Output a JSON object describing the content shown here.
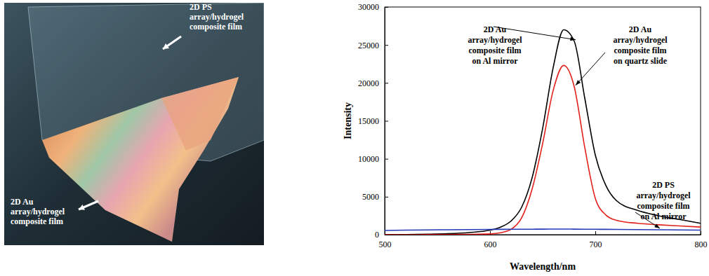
{
  "photo": {
    "labels": [
      {
        "text": "2D PS\narray/hydrogel\ncomposite film"
      },
      {
        "text": "2D Au\narray/hydrogel\ncomposite film"
      }
    ]
  },
  "chart_data": {
    "type": "line",
    "x_label": "Wavelength/nm",
    "y_label": "Intensity",
    "x": [
      500,
      520,
      540,
      560,
      580,
      600,
      610,
      620,
      630,
      640,
      650,
      660,
      670,
      680,
      690,
      700,
      710,
      720,
      740,
      760,
      780,
      800
    ],
    "series": [
      {
        "name": "2D Au\narray/hydrogel\ncomposite film\non Al mirror",
        "color": "#000000",
        "values": [
          0,
          20,
          60,
          130,
          280,
          600,
          1000,
          1800,
          3600,
          7500,
          14000,
          22000,
          27000,
          25500,
          18000,
          10500,
          6500,
          4500,
          3200,
          2500,
          2000,
          1500
        ]
      },
      {
        "name": "2D Au\narray/hydrogel\ncomposite film\non quartz slide",
        "color": "#e3211c",
        "values": [
          0,
          0,
          10,
          20,
          40,
          100,
          250,
          700,
          2200,
          6000,
          12000,
          19000,
          22300,
          19500,
          11500,
          4800,
          2600,
          1900,
          1500,
          1300,
          1150,
          1000
        ]
      },
      {
        "name": "2D PS\narray/hydrogel\ncomposite film\non Al mirror",
        "color": "#2438b8",
        "values": [
          550,
          600,
          630,
          650,
          670,
          690,
          700,
          710,
          715,
          720,
          730,
          735,
          740,
          730,
          720,
          710,
          700,
          690,
          670,
          650,
          630,
          600
        ]
      }
    ],
    "xlim": [
      500,
      800
    ],
    "xticks": [
      500,
      600,
      700,
      800
    ],
    "ylim": [
      0,
      30000
    ],
    "yticks": [
      0,
      5000,
      10000,
      15000,
      20000,
      25000,
      30000
    ]
  }
}
